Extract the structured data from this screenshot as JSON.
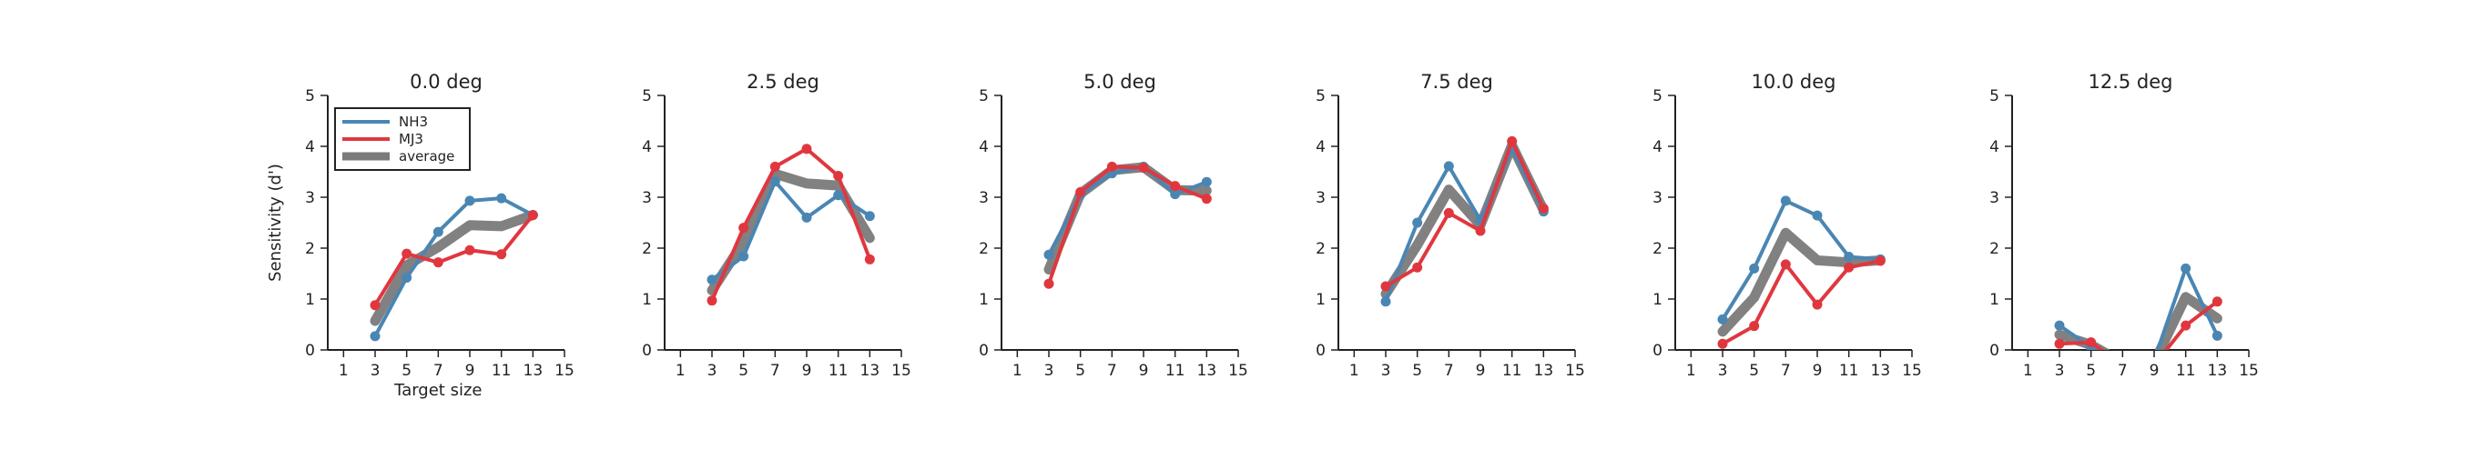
{
  "chart_data": {
    "type": "line",
    "ylabel": "Sensitivity (d')",
    "xlabel": "Target size",
    "xlim": [
      0,
      15
    ],
    "ylim": [
      0,
      5
    ],
    "x_ticks": [
      1,
      3,
      5,
      7,
      9,
      11,
      13,
      15
    ],
    "y_ticks": [
      0,
      1,
      2,
      3,
      4,
      5
    ],
    "legend": {
      "placement": "top-left",
      "entries": [
        {
          "name": "NH3",
          "color": "#4a86b3"
        },
        {
          "name": "MJ3",
          "color": "#e0373f"
        },
        {
          "name": "average",
          "color": "#7a7a7a"
        }
      ]
    },
    "x": [
      3,
      5,
      7,
      9,
      11,
      13
    ],
    "panels": [
      {
        "title": "0.0 deg",
        "series": [
          {
            "name": "NH3",
            "values": [
              0.27,
              1.42,
              2.32,
              2.93,
              2.98,
              2.65
            ]
          },
          {
            "name": "MJ3",
            "values": [
              0.88,
              1.89,
              1.72,
              1.96,
              1.88,
              2.65
            ]
          },
          {
            "name": "average",
            "values": [
              0.57,
              1.66,
              2.02,
              2.45,
              2.43,
              2.65
            ]
          }
        ]
      },
      {
        "title": "2.5 deg",
        "series": [
          {
            "name": "NH3",
            "values": [
              1.38,
              1.84,
              3.31,
              2.6,
              3.04,
              2.63
            ]
          },
          {
            "name": "MJ3",
            "values": [
              0.97,
              2.4,
              3.6,
              3.95,
              3.42,
              1.78
            ]
          },
          {
            "name": "average",
            "values": [
              1.17,
              2.12,
              3.46,
              3.27,
              3.23,
              2.2
            ]
          }
        ]
      },
      {
        "title": "5.0 deg",
        "series": [
          {
            "name": "NH3",
            "values": [
              1.87,
              3.05,
              3.47,
              3.6,
              3.06,
              3.3
            ]
          },
          {
            "name": "MJ3",
            "values": [
              1.3,
              3.1,
              3.6,
              3.58,
              3.22,
              2.97
            ]
          },
          {
            "name": "average",
            "values": [
              1.58,
              3.07,
              3.53,
              3.59,
              3.14,
              3.13
            ]
          }
        ]
      },
      {
        "title": "7.5 deg",
        "series": [
          {
            "name": "NH3",
            "values": [
              0.95,
              2.5,
              3.61,
              2.55,
              3.95,
              2.72
            ]
          },
          {
            "name": "MJ3",
            "values": [
              1.25,
              1.62,
              2.69,
              2.34,
              4.1,
              2.78
            ]
          },
          {
            "name": "average",
            "values": [
              1.1,
              2.06,
              3.15,
              2.45,
              4.02,
              2.75
            ]
          }
        ]
      },
      {
        "title": "10.0 deg",
        "series": [
          {
            "name": "NH3",
            "values": [
              0.6,
              1.6,
              2.93,
              2.64,
              1.83,
              1.78
            ]
          },
          {
            "name": "MJ3",
            "values": [
              0.12,
              0.47,
              1.68,
              0.89,
              1.62,
              1.75
            ]
          },
          {
            "name": "average",
            "values": [
              0.36,
              1.03,
              2.3,
              1.76,
              1.72,
              1.76
            ]
          }
        ]
      },
      {
        "title": "12.5 deg",
        "series": [
          {
            "name": "NH3",
            "values": [
              0.48,
              0.05,
              -0.2,
              -0.2,
              1.6,
              0.28
            ]
          },
          {
            "name": "MJ3",
            "values": [
              0.12,
              0.15,
              -0.3,
              -0.3,
              0.48,
              0.95
            ]
          },
          {
            "name": "average",
            "values": [
              0.3,
              0.1,
              -0.25,
              -0.25,
              1.04,
              0.62
            ]
          }
        ]
      }
    ]
  }
}
